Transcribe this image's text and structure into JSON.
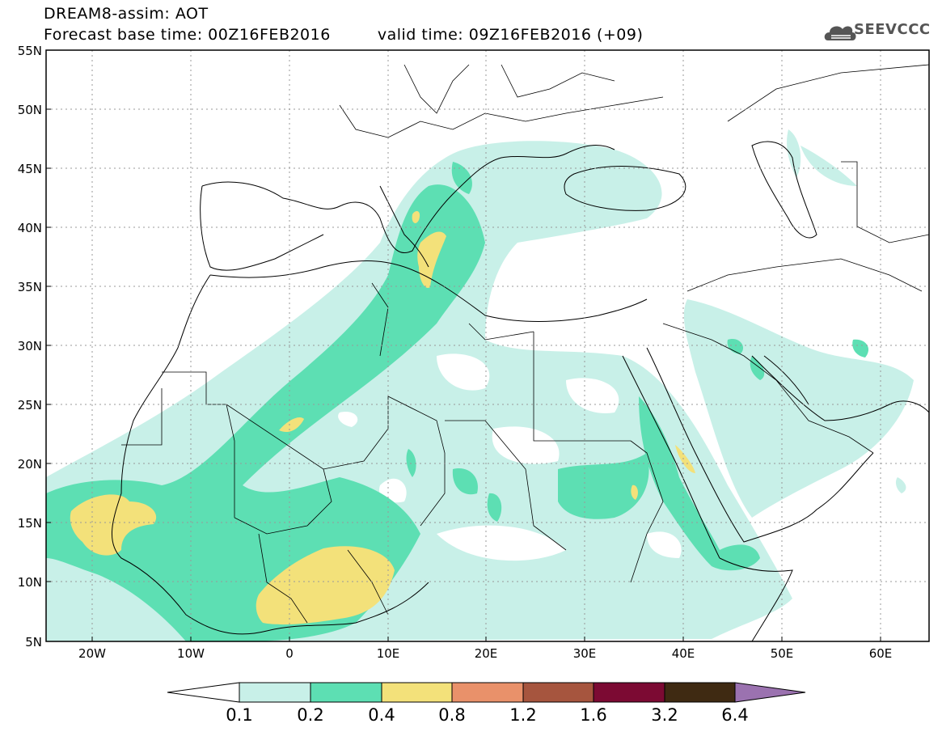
{
  "header": {
    "line1": "DREAM8-assim: AOT",
    "base_time": "Forecast base time: 00Z16FEB2016",
    "valid_time": "valid time: 09Z16FEB2016 (+09)"
  },
  "logo": {
    "text": "SEEVCCC",
    "icon": "cloud-icon"
  },
  "map": {
    "lon_range": [
      -25,
      65
    ],
    "lat_range": [
      5,
      55
    ],
    "lat_labels": [
      "55N",
      "50N",
      "45N",
      "40N",
      "35N",
      "30N",
      "25N",
      "20N",
      "15N",
      "10N",
      "5N"
    ],
    "lon_labels": [
      "20W",
      "10W",
      "0",
      "10E",
      "20E",
      "30E",
      "40E",
      "50E",
      "60E"
    ],
    "grid": "dotted"
  },
  "colorbar": {
    "labels": [
      "0.1",
      "0.2",
      "0.4",
      "0.8",
      "1.2",
      "1.6",
      "3.2",
      "6.4"
    ],
    "colors": [
      "#c8f0e8",
      "#5ddfb3",
      "#f3e17a",
      "#e9916a",
      "#a6553e",
      "#7c0a33",
      "#3f2a12",
      "#9b72b0"
    ],
    "under_color": "#ffffff"
  },
  "palette": {
    "c1": "#c8f0e8",
    "c2": "#5ddfb3",
    "c3": "#f3e17a"
  }
}
